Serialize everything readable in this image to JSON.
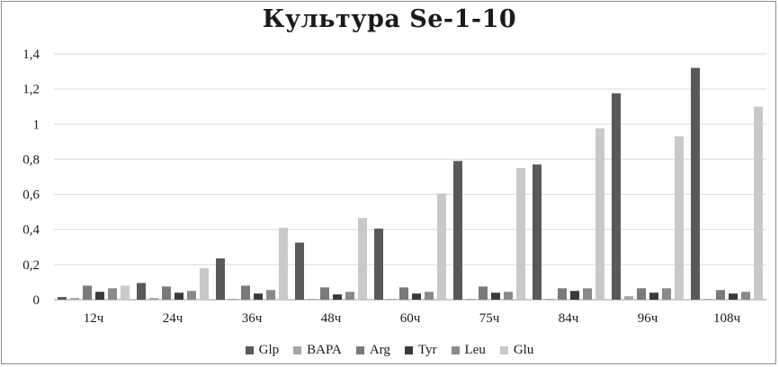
{
  "chart_data": {
    "type": "bar",
    "title": "Культура Se-1-10",
    "xlabel": "",
    "ylabel": "",
    "ylim": [
      0,
      1.4
    ],
    "yticks": [
      "0",
      "0,2",
      "0,4",
      "0,6",
      "0,8",
      "1",
      "1,2",
      "1,4"
    ],
    "categories": [
      "12ч",
      "24ч",
      "36ч",
      "48ч",
      "60ч",
      "75ч",
      "84ч",
      "96ч",
      "108ч"
    ],
    "grid": true,
    "legend_position": "bottom",
    "series": [
      {
        "name": "Glp",
        "color": "#595959",
        "values": [
          0.015,
          0.095,
          0.235,
          0.325,
          0.405,
          0.79,
          0.77,
          1.175,
          1.32
        ]
      },
      {
        "name": "BAPA",
        "color": "#a6a6a6",
        "values": [
          0.01,
          0.01,
          0.005,
          0.005,
          0.005,
          0.005,
          0.005,
          0.02,
          0.005
        ]
      },
      {
        "name": "Arg",
        "color": "#7a7a7a",
        "values": [
          0.08,
          0.075,
          0.08,
          0.07,
          0.07,
          0.075,
          0.065,
          0.065,
          0.055
        ]
      },
      {
        "name": "Tyr",
        "color": "#3a3a3a",
        "values": [
          0.045,
          0.04,
          0.035,
          0.03,
          0.035,
          0.04,
          0.05,
          0.04,
          0.035
        ]
      },
      {
        "name": "Leu",
        "color": "#8a8a8a",
        "values": [
          0.065,
          0.05,
          0.055,
          0.045,
          0.045,
          0.045,
          0.065,
          0.065,
          0.045
        ]
      },
      {
        "name": "Glu",
        "color": "#c9c9c9",
        "values": [
          0.08,
          0.18,
          0.41,
          0.465,
          0.605,
          0.75,
          0.975,
          0.93,
          1.1
        ]
      }
    ]
  }
}
